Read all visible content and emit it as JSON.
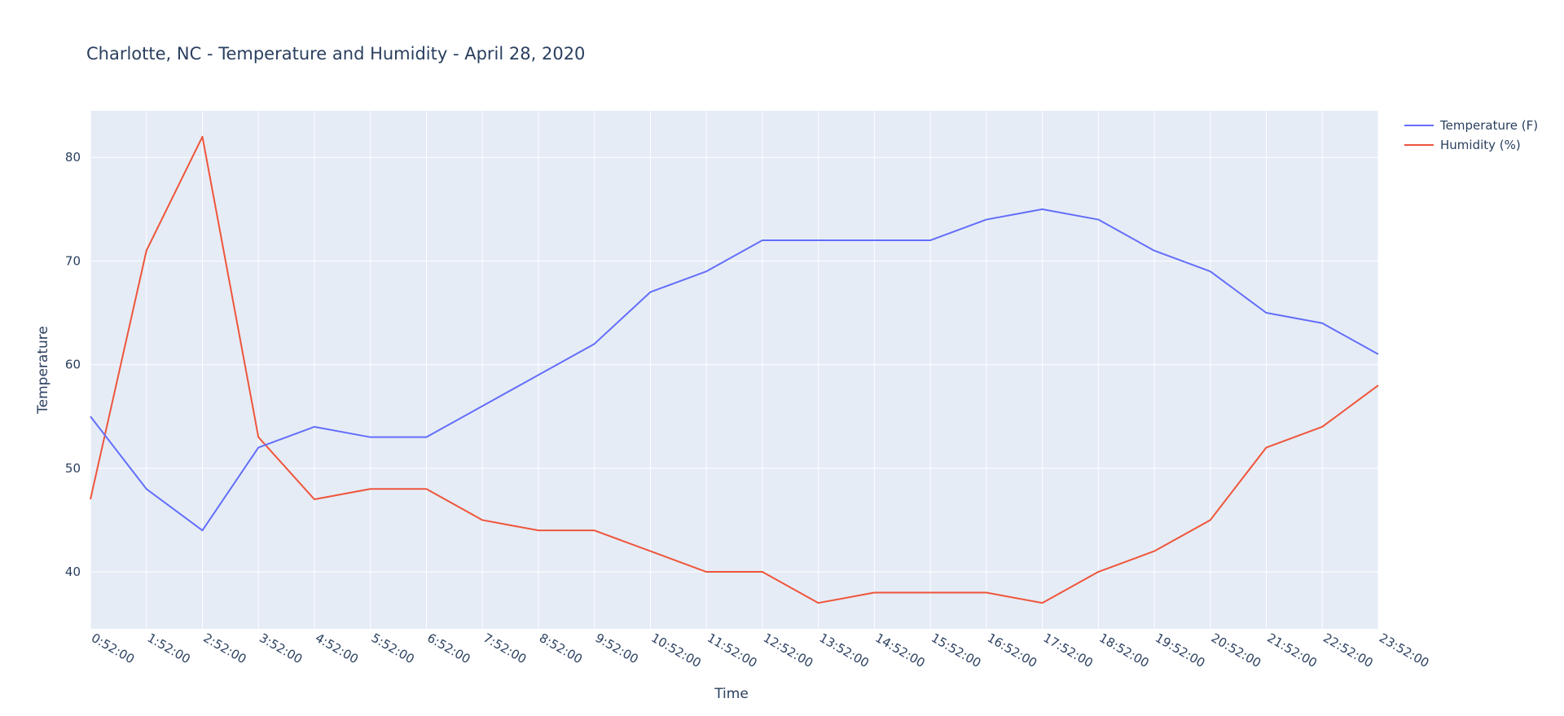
{
  "chart_data": {
    "type": "line",
    "title": "Charlotte, NC - Temperature and Humidity - April 28, 2020",
    "xlabel": "Time",
    "ylabel": "Temperature",
    "ylim": [
      34.5,
      84.5
    ],
    "yticks": [
      40,
      50,
      60,
      70,
      80
    ],
    "grid": true,
    "legend_position": "top-right",
    "categories": [
      "0:52:00",
      "1:52:00",
      "2:52:00",
      "3:52:00",
      "4:52:00",
      "5:52:00",
      "6:52:00",
      "7:52:00",
      "8:52:00",
      "9:52:00",
      "10:52:00",
      "11:52:00",
      "12:52:00",
      "13:52:00",
      "14:52:00",
      "15:52:00",
      "16:52:00",
      "17:52:00",
      "18:52:00",
      "19:52:00",
      "20:52:00",
      "21:52:00",
      "22:52:00",
      "23:52:00"
    ],
    "series": [
      {
        "name": "Temperature (F)",
        "color": "#636efa",
        "values": [
          55,
          48,
          44,
          52,
          54,
          53,
          53,
          56,
          59,
          62,
          67,
          69,
          72,
          72,
          72,
          72,
          74,
          75,
          74,
          71,
          69,
          65,
          64,
          61
        ]
      },
      {
        "name": "Humidity (%)",
        "color": "#ef553b",
        "values": [
          47,
          71,
          82,
          53,
          47,
          48,
          48,
          45,
          44,
          44,
          42,
          40,
          40,
          37,
          38,
          38,
          38,
          37,
          40,
          42,
          45,
          52,
          54,
          58
        ]
      }
    ]
  }
}
